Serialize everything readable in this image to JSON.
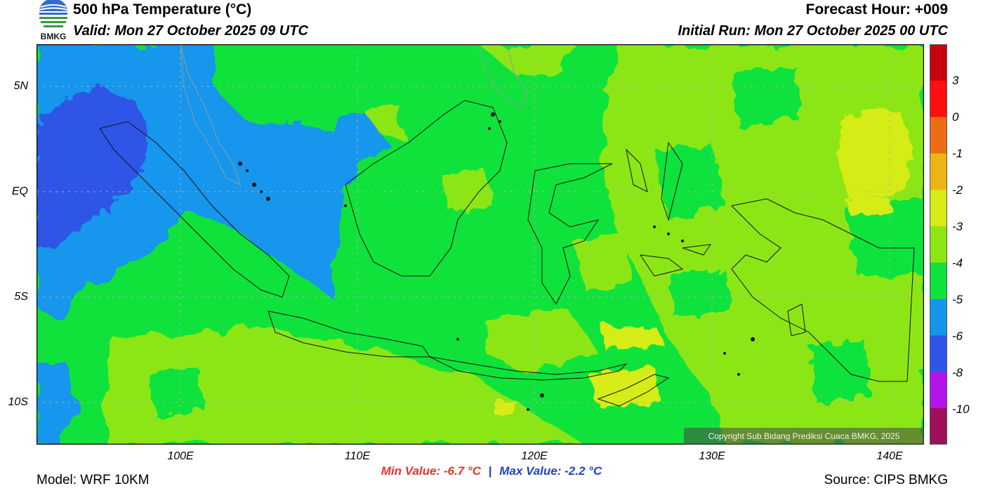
{
  "header": {
    "title": "500 hPa Temperature (°C)",
    "valid": "Valid: Mon 27 October 2025 09 UTC",
    "forecast_hour": "Forecast Hour: +009",
    "initial_run": "Initial Run: Mon 27 October 2025 00 UTC"
  },
  "logo": {
    "text": "BMKG",
    "icon": "bmkg-logo-icon"
  },
  "axes": {
    "lat_labels": [
      "5N",
      "EQ",
      "5S",
      "10S"
    ],
    "lon_labels": [
      "100E",
      "110E",
      "120E",
      "130E",
      "140E"
    ]
  },
  "colorbar": {
    "labels": [
      "3",
      "0",
      "-1",
      "-2",
      "-3",
      "-4",
      "-5",
      "-6",
      "-8",
      "-10"
    ],
    "colors": [
      "#c8000f",
      "#ff1010",
      "#ec6c14",
      "#ecb414",
      "#d6ec14",
      "#8ce614",
      "#10e23c",
      "#1496ec",
      "#2e55e6",
      "#b414ec",
      "#a0105a"
    ]
  },
  "stats": {
    "min": "Min Value: -6.7",
    "max": "Max Value: -2.2",
    "unit": "°C"
  },
  "footer": {
    "model": "Model: WRF 10KM",
    "source": "Source: CIPS BMKG",
    "copyright": "Copyright Sub Bidang Prediksi Cuaca BMKG, 2025"
  }
}
